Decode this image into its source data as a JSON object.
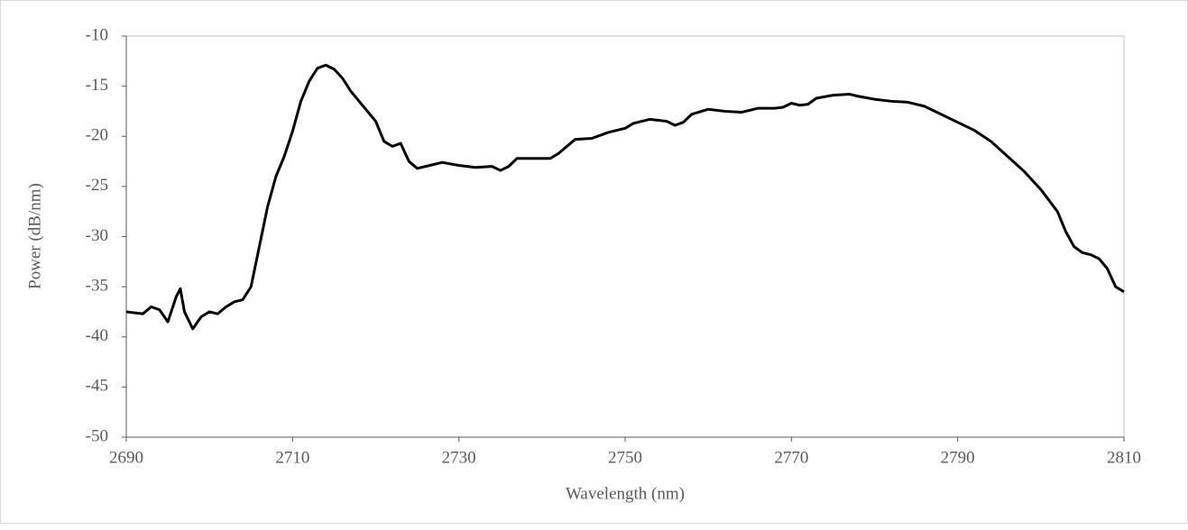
{
  "chart_data": {
    "type": "line",
    "x_label": "Wavelength  (nm)",
    "y_label": "Power (dB/nm)",
    "x": [
      2690,
      2692,
      2693,
      2694,
      2695,
      2696,
      2696.5,
      2697,
      2698,
      2699,
      2700,
      2701,
      2702,
      2703,
      2704,
      2705,
      2706,
      2707,
      2708,
      2709,
      2710,
      2711,
      2712,
      2713,
      2714,
      2715,
      2716,
      2717,
      2718,
      2719,
      2720,
      2721,
      2722,
      2723,
      2724,
      2725,
      2726,
      2728,
      2730,
      2732,
      2734,
      2735,
      2736,
      2737,
      2739,
      2741,
      2742,
      2743,
      2744,
      2746,
      2748,
      2750,
      2751,
      2753,
      2755,
      2756,
      2757,
      2758,
      2760,
      2762,
      2764,
      2766,
      2768,
      2769,
      2770,
      2771,
      2772,
      2773,
      2775,
      2777,
      2778,
      2780,
      2782,
      2784,
      2786,
      2788,
      2790,
      2792,
      2794,
      2796,
      2798,
      2800,
      2802,
      2803,
      2804,
      2805,
      2806,
      2807,
      2808,
      2809,
      2810
    ],
    "series": [
      {
        "name": "Power",
        "color": "#000000",
        "values": [
          -37.5,
          -37.7,
          -37.0,
          -37.3,
          -38.5,
          -36.0,
          -35.2,
          -37.5,
          -39.2,
          -38.0,
          -37.5,
          -37.7,
          -37.0,
          -36.5,
          -36.3,
          -35.0,
          -31,
          -27,
          -24,
          -22,
          -19.5,
          -16.5,
          -14.5,
          -13.2,
          -12.9,
          -13.3,
          -14.2,
          -15.5,
          -16.5,
          -17.5,
          -18.5,
          -20.5,
          -21,
          -20.7,
          -22.5,
          -23.2,
          -23,
          -22.6,
          -22.9,
          -23.1,
          -23,
          -23.4,
          -23,
          -22.2,
          -22.2,
          -22.2,
          -21.7,
          -21,
          -20.3,
          -20.2,
          -19.6,
          -19.2,
          -18.7,
          -18.3,
          -18.5,
          -18.9,
          -18.6,
          -17.8,
          -17.3,
          -17.5,
          -17.6,
          -17.2,
          -17.2,
          -17.1,
          -16.7,
          -16.9,
          -16.8,
          -16.2,
          -15.9,
          -15.8,
          -16.0,
          -16.3,
          -16.5,
          -16.6,
          -17.0,
          -17.8,
          -18.6,
          -19.4,
          -20.5,
          -22,
          -23.5,
          -25.3,
          -27.5,
          -29.5,
          -31,
          -31.6,
          -31.8,
          -32.2,
          -33.2,
          -35,
          -35.5
        ]
      }
    ],
    "xlim": [
      2690,
      2810
    ],
    "xticks": [
      2690,
      2710,
      2730,
      2750,
      2770,
      2790,
      2810
    ],
    "ylim": [
      -50,
      -10
    ],
    "yticks": [
      -50,
      -45,
      -40,
      -35,
      -30,
      -25,
      -20,
      -15,
      -10
    ],
    "grid": false
  }
}
